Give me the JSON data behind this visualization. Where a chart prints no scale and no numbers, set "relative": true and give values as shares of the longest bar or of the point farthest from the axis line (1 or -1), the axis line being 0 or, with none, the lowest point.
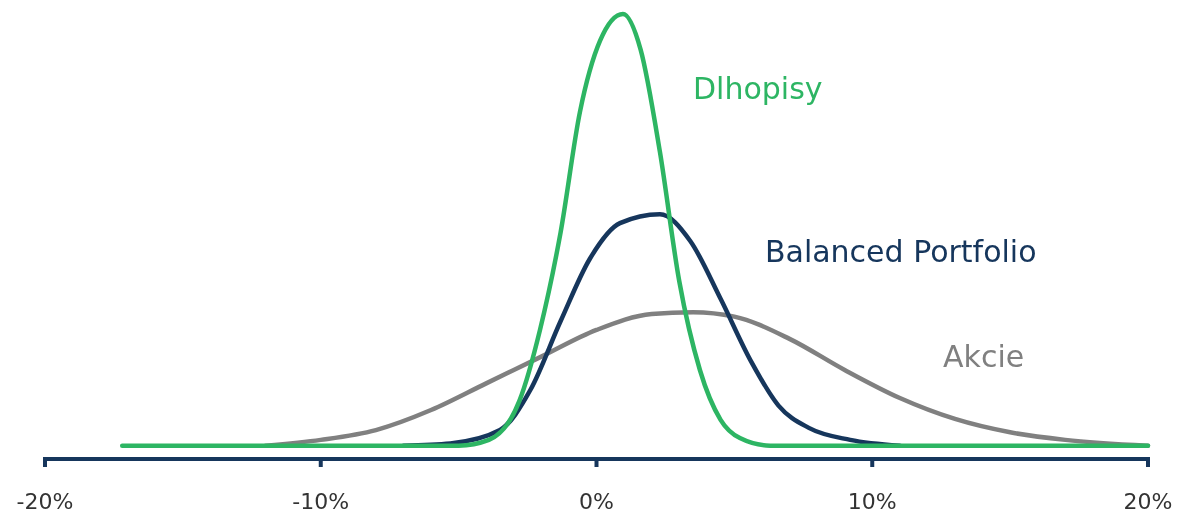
{
  "chart_data": {
    "type": "line",
    "relative": true,
    "xlim": [
      -20,
      20
    ],
    "xticks": [
      {
        "value": -20,
        "label": "-20%"
      },
      {
        "value": -10,
        "label": "-10%"
      },
      {
        "value": 0,
        "label": "0%"
      },
      {
        "value": 10,
        "label": "10%"
      },
      {
        "value": 20,
        "label": "20%"
      }
    ],
    "series": [
      {
        "name": "Akcie",
        "color": "#808080",
        "x": [
          -12,
          -10,
          -8,
          -6,
          -4,
          -2,
          0,
          2,
          3.5,
          5,
          7,
          9,
          11,
          13,
          15,
          17,
          20
        ],
        "values": [
          0.03,
          0.043,
          0.065,
          0.11,
          0.17,
          0.23,
          0.29,
          0.326,
          0.33,
          0.32,
          0.27,
          0.2,
          0.137,
          0.09,
          0.06,
          0.043,
          0.03
        ]
      },
      {
        "name": "Balanced Portfolio",
        "color": "#16365c",
        "x": [
          -7,
          -5.3,
          -3.5,
          -2.4,
          -1.3,
          -0.24,
          0.85,
          2.3,
          3.4,
          4.5,
          5.6,
          6.6,
          7.7,
          9.2,
          11
        ],
        "values": [
          0.03,
          0.035,
          0.065,
          0.155,
          0.31,
          0.45,
          0.53,
          0.55,
          0.49,
          0.36,
          0.22,
          0.12,
          0.07,
          0.043,
          0.03
        ]
      },
      {
        "name": "Dlhopisy",
        "color": "#2db563",
        "x": [
          -17.2,
          -10,
          -5,
          -3.9,
          -2.8,
          -2.05,
          -1.3,
          -0.6,
          0.13,
          0.96,
          1.6,
          2.3,
          3.0,
          3.75,
          4.5,
          5.2,
          6.3,
          12,
          20
        ],
        "values": [
          0.03,
          0.03,
          0.03,
          0.043,
          0.13,
          0.29,
          0.51,
          0.78,
          0.94,
          1,
          0.92,
          0.69,
          0.4,
          0.2,
          0.088,
          0.047,
          0.03,
          0.03,
          0.03
        ]
      }
    ]
  }
}
